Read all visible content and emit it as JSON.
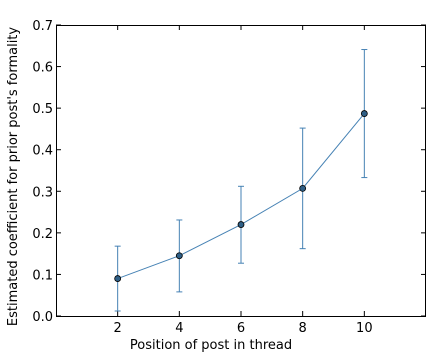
{
  "chart_data": {
    "type": "line",
    "xlabel": "Position of post in thread",
    "ylabel": "Estimated coefficient for prior post's formality",
    "xlim": [
      0,
      12
    ],
    "ylim": [
      0.0,
      0.7
    ],
    "xticks": [
      2,
      4,
      6,
      8,
      10
    ],
    "xtick_labels": [
      "2",
      "4",
      "6",
      "8",
      "10"
    ],
    "yticks": [
      0.0,
      0.1,
      0.2,
      0.3,
      0.4,
      0.5,
      0.6,
      0.7
    ],
    "ytick_labels": [
      "0.0",
      "0.1",
      "0.2",
      "0.3",
      "0.4",
      "0.5",
      "0.6",
      "0.7"
    ],
    "grid": false,
    "series": [
      {
        "x": [
          2,
          4,
          6,
          8,
          10
        ],
        "y": [
          0.09,
          0.145,
          0.22,
          0.307,
          0.487
        ],
        "err_low": [
          0.012,
          0.058,
          0.127,
          0.162,
          0.333
        ],
        "err_high": [
          0.168,
          0.231,
          0.312,
          0.452,
          0.641
        ],
        "color": "#4682b4",
        "marker_color": "#2f5f86"
      }
    ]
  }
}
